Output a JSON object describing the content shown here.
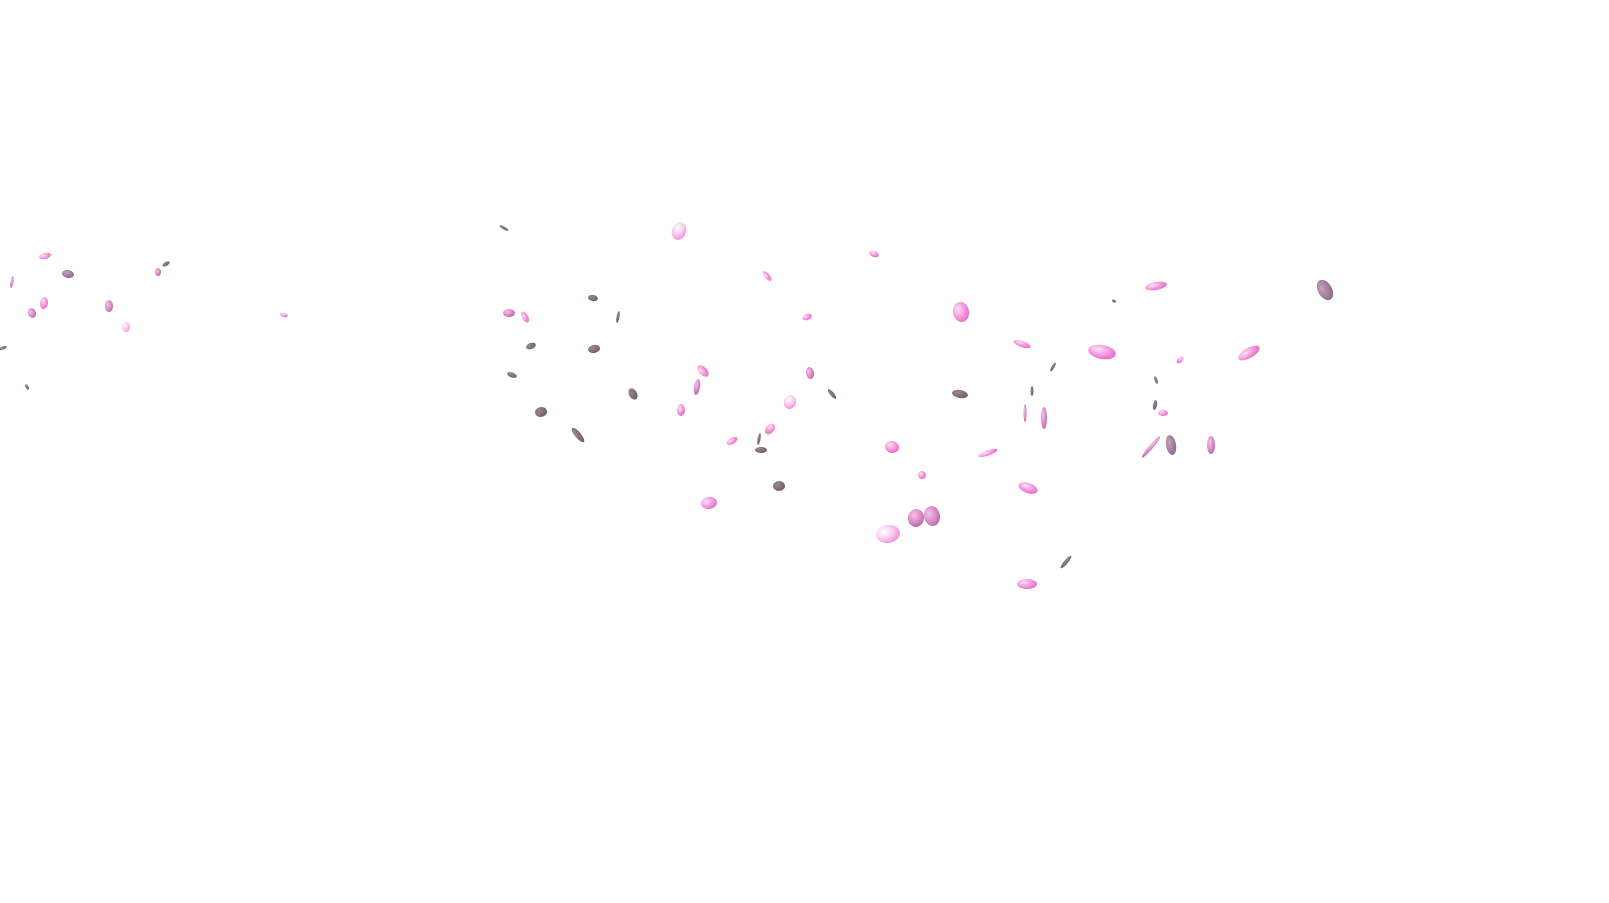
{
  "scene": {
    "subject": "falling-petals",
    "background_color": "#ffffff",
    "petal_colors": {
      "pink": "#f07fd8",
      "pink_light": "#f9b6ec",
      "pink_mid": "#e47dc8",
      "mauve": "#a97ea0",
      "mauve_dark": "#8a6a82",
      "gray": "#7d6b78"
    }
  }
}
